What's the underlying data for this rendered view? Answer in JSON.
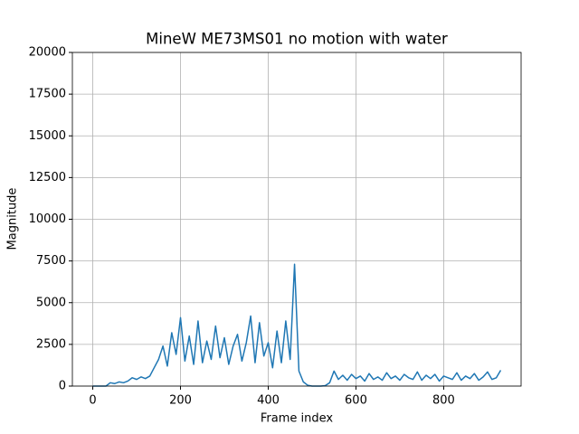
{
  "chart_data": {
    "type": "line",
    "title": "MineW ME73MS01 no motion with water",
    "x_label": "Frame index",
    "y_label": "Magnitude",
    "x": [
      0,
      10,
      20,
      30,
      40,
      50,
      60,
      70,
      80,
      90,
      100,
      110,
      120,
      130,
      140,
      150,
      160,
      170,
      180,
      190,
      200,
      210,
      220,
      230,
      240,
      250,
      260,
      270,
      280,
      290,
      300,
      310,
      320,
      330,
      340,
      350,
      360,
      370,
      380,
      390,
      400,
      410,
      420,
      430,
      440,
      450,
      460,
      470,
      480,
      490,
      500,
      510,
      520,
      530,
      540,
      550,
      560,
      570,
      580,
      590,
      600,
      610,
      620,
      630,
      640,
      650,
      660,
      670,
      680,
      690,
      700,
      710,
      720,
      730,
      740,
      750,
      760,
      770,
      780,
      790,
      800,
      810,
      820,
      830,
      840,
      850,
      860,
      870,
      880,
      890,
      900,
      910,
      920,
      930
    ],
    "values": [
      0,
      0,
      0,
      0,
      200,
      150,
      250,
      200,
      300,
      500,
      400,
      550,
      450,
      600,
      1100,
      1600,
      2400,
      1200,
      3200,
      1900,
      4100,
      1500,
      3000,
      1300,
      3900,
      1400,
      2700,
      1600,
      3600,
      1700,
      2900,
      1300,
      2400,
      3100,
      1500,
      2600,
      4200,
      1400,
      3800,
      1800,
      2600,
      1100,
      3300,
      1400,
      3900,
      1600,
      7300,
      900,
      250,
      50,
      0,
      0,
      0,
      30,
      200,
      900,
      400,
      650,
      350,
      700,
      450,
      600,
      300,
      750,
      400,
      550,
      350,
      800,
      450,
      600,
      350,
      700,
      500,
      400,
      850,
      350,
      650,
      450,
      700,
      300,
      600,
      500,
      400,
      800,
      350,
      600,
      450,
      750,
      350,
      550,
      850,
      400,
      500,
      950
    ],
    "color": "#1f77b4",
    "xlim": [
      -46.5,
      976.5
    ],
    "xticks": [
      0,
      200,
      400,
      600,
      800
    ],
    "ylim": [
      0,
      20000
    ],
    "yticks": [
      0,
      2500,
      5000,
      7500,
      10000,
      12500,
      15000,
      17500,
      20000
    ],
    "grid": true
  }
}
